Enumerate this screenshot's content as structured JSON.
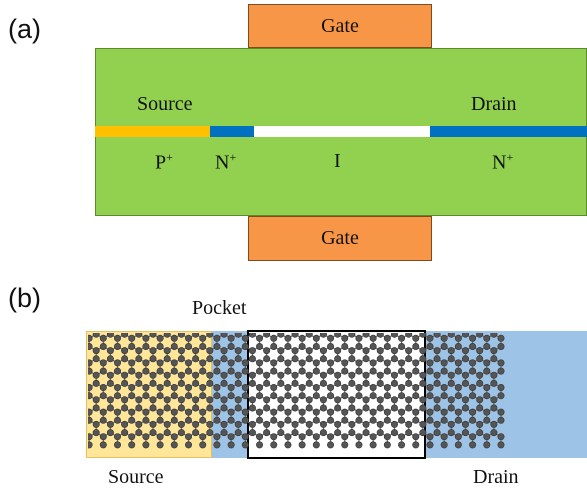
{
  "panel_a": {
    "label": "(a)",
    "gate_top": "Gate",
    "gate_bottom": "Gate",
    "source_label": "Source",
    "drain_label": "Drain",
    "doping": {
      "p_plus": "P",
      "n_plus_left": "N",
      "intrinsic": "I",
      "n_plus_right": "N",
      "superscript": "+"
    },
    "colors": {
      "gate": "#f79646",
      "body": "#92d050",
      "p_region": "#ffc000",
      "n_region": "#0070c0",
      "intrinsic": "#ffffff"
    }
  },
  "panel_b": {
    "label": "(b)",
    "pocket_label": "Pocket",
    "source_label": "Source",
    "drain_label": "Drain",
    "colors": {
      "source_region": "#ffe699",
      "n_region": "#9dc3e6",
      "channel_border": "#000000",
      "atom": "#555555"
    }
  }
}
